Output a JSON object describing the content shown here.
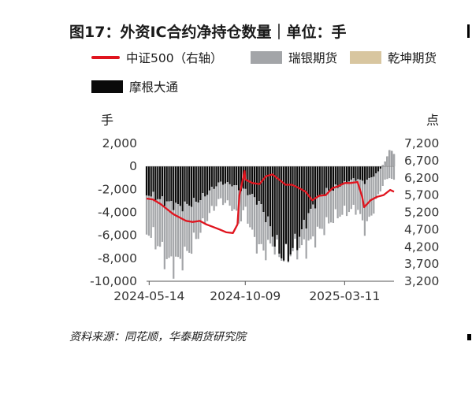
{
  "title": "图17：外资IC合约净持仓数量｜单位：手",
  "legend": [
    {
      "label": "中证500（右轴）",
      "color": "#e0141e",
      "kind": "line"
    },
    {
      "label": "瑞银期货",
      "color": "#a3a5a8",
      "kind": "bar"
    },
    {
      "label": "乾坤期货",
      "color": "#d8c6a0",
      "kind": "bar"
    },
    {
      "label": "摩根大通",
      "color": "#0a0a0a",
      "kind": "bar"
    }
  ],
  "left_unit": "手",
  "right_unit": "点",
  "source": "资料来源：同花顺，华泰期货研究院",
  "chart_data": {
    "type": "bar",
    "title": "图17：外资IC合约净持仓数量｜单位：手",
    "left_axis": {
      "unit": "手",
      "ticks": [
        "2,000",
        "0",
        "-2,000",
        "-4,000",
        "-6,000",
        "-8,000",
        "-10,000"
      ],
      "ylim": [
        -10000,
        2000
      ]
    },
    "right_axis": {
      "unit": "点",
      "ticks": [
        "7,200",
        "6,700",
        "6,200",
        "5,700",
        "5,200",
        "4,700",
        "4,200",
        "3,700",
        "3,200"
      ],
      "ylim": [
        3200,
        7200
      ]
    },
    "x_ticks": [
      "2024-05-14",
      "2024-10-09",
      "2025-03-11"
    ],
    "x_range": [
      "2024-05-10",
      "2025-05-26"
    ],
    "grid": false,
    "legend_position": "top",
    "series": [
      {
        "name": "摩根大通",
        "type": "bar",
        "stacked": true,
        "points": [
          [
            "2024-05-10",
            -2400
          ],
          [
            "2024-05-20",
            -2600
          ],
          [
            "2024-05-31",
            -2900
          ],
          [
            "2024-06-10",
            -3100
          ],
          [
            "2024-06-20",
            -3300
          ],
          [
            "2024-06-30",
            -3500
          ],
          [
            "2024-07-10",
            -3400
          ],
          [
            "2024-07-20",
            -3200
          ],
          [
            "2024-07-31",
            -2900
          ],
          [
            "2024-08-10",
            -2400
          ],
          [
            "2024-08-20",
            -1900
          ],
          [
            "2024-08-31",
            -1400
          ],
          [
            "2024-09-10",
            -1500
          ],
          [
            "2024-09-20",
            -1600
          ],
          [
            "2024-09-30",
            -2000
          ],
          [
            "2024-10-09",
            -2100
          ],
          [
            "2024-10-20",
            -2600
          ],
          [
            "2024-10-31",
            -3200
          ],
          [
            "2024-11-10",
            -4400
          ],
          [
            "2024-11-20",
            -5900
          ],
          [
            "2024-11-30",
            -7400
          ],
          [
            "2024-12-10",
            -8000
          ],
          [
            "2024-12-20",
            -7200
          ],
          [
            "2024-12-31",
            -6200
          ],
          [
            "2025-01-10",
            -4800
          ],
          [
            "2025-01-20",
            -3600
          ],
          [
            "2025-01-31",
            -2600
          ],
          [
            "2025-02-10",
            -2200
          ],
          [
            "2025-02-20",
            -2000
          ],
          [
            "2025-02-28",
            -1800
          ],
          [
            "2025-03-11",
            -1500
          ],
          [
            "2025-03-20",
            -1200
          ],
          [
            "2025-03-31",
            -1100
          ],
          [
            "2025-04-10",
            -1400
          ],
          [
            "2025-04-20",
            -1000
          ],
          [
            "2025-04-30",
            -600
          ],
          [
            "2025-05-10",
            200
          ],
          [
            "2025-05-20",
            1400
          ],
          [
            "2025-05-26",
            1200
          ]
        ]
      },
      {
        "name": "瑞银期货",
        "type": "bar",
        "stacked": true,
        "points": [
          [
            "2024-05-10",
            -3200
          ],
          [
            "2024-05-20",
            -3600
          ],
          [
            "2024-05-31",
            -4200
          ],
          [
            "2024-06-10",
            -5100
          ],
          [
            "2024-06-20",
            -5200
          ],
          [
            "2024-06-30",
            -4700
          ],
          [
            "2024-07-10",
            -4300
          ],
          [
            "2024-07-20",
            -3600
          ],
          [
            "2024-07-31",
            -2800
          ],
          [
            "2024-08-10",
            -2200
          ],
          [
            "2024-08-20",
            -1800
          ],
          [
            "2024-08-31",
            -1500
          ],
          [
            "2024-09-10",
            -1700
          ],
          [
            "2024-09-20",
            -2000
          ],
          [
            "2024-09-30",
            -2800
          ],
          [
            "2024-10-09",
            -1600
          ],
          [
            "2024-10-20",
            -3400
          ],
          [
            "2024-10-31",
            -4000
          ],
          [
            "2024-11-10",
            -2900
          ],
          [
            "2024-11-20",
            -800
          ],
          [
            "2024-11-30",
            -300
          ],
          [
            "2024-12-10",
            0
          ],
          [
            "2024-12-20",
            -200
          ],
          [
            "2024-12-31",
            -900
          ],
          [
            "2025-01-10",
            -2200
          ],
          [
            "2025-01-20",
            -2900
          ],
          [
            "2025-01-31",
            -3000
          ],
          [
            "2025-02-10",
            -3000
          ],
          [
            "2025-02-20",
            -2600
          ],
          [
            "2025-02-28",
            -2500
          ],
          [
            "2025-03-11",
            -2500
          ],
          [
            "2025-03-20",
            -2600
          ],
          [
            "2025-03-31",
            -2600
          ],
          [
            "2025-04-10",
            -4000
          ],
          [
            "2025-04-20",
            -3500
          ],
          [
            "2025-04-30",
            -2200
          ],
          [
            "2025-05-10",
            -1600
          ],
          [
            "2025-05-20",
            -2300
          ],
          [
            "2025-05-26",
            -2500
          ]
        ]
      },
      {
        "name": "乾坤期货",
        "type": "bar",
        "stacked": true,
        "points": []
      },
      {
        "name": "中证500（右轴）",
        "type": "line",
        "axis": "right",
        "points": [
          [
            "2024-05-10",
            5600
          ],
          [
            "2024-05-20",
            5570
          ],
          [
            "2024-05-31",
            5450
          ],
          [
            "2024-06-10",
            5300
          ],
          [
            "2024-06-20",
            5150
          ],
          [
            "2024-06-30",
            5050
          ],
          [
            "2024-07-10",
            4950
          ],
          [
            "2024-07-20",
            4920
          ],
          [
            "2024-07-31",
            4950
          ],
          [
            "2024-08-10",
            4850
          ],
          [
            "2024-08-20",
            4780
          ],
          [
            "2024-08-31",
            4700
          ],
          [
            "2024-09-10",
            4620
          ],
          [
            "2024-09-20",
            4600
          ],
          [
            "2024-09-27",
            4850
          ],
          [
            "2024-09-30",
            5700
          ],
          [
            "2024-10-08",
            6400
          ],
          [
            "2024-10-09",
            6150
          ],
          [
            "2024-10-20",
            6050
          ],
          [
            "2024-10-31",
            6020
          ],
          [
            "2024-11-10",
            6250
          ],
          [
            "2024-11-20",
            6300
          ],
          [
            "2024-11-30",
            6150
          ],
          [
            "2024-12-10",
            6000
          ],
          [
            "2024-12-20",
            6000
          ],
          [
            "2024-12-31",
            5900
          ],
          [
            "2025-01-10",
            5800
          ],
          [
            "2025-01-20",
            5550
          ],
          [
            "2025-01-31",
            5680
          ],
          [
            "2025-02-10",
            5700
          ],
          [
            "2025-02-20",
            5900
          ],
          [
            "2025-02-28",
            5950
          ],
          [
            "2025-03-11",
            6050
          ],
          [
            "2025-03-20",
            6050
          ],
          [
            "2025-03-31",
            6080
          ],
          [
            "2025-04-07",
            5650
          ],
          [
            "2025-04-10",
            5350
          ],
          [
            "2025-04-20",
            5550
          ],
          [
            "2025-04-30",
            5650
          ],
          [
            "2025-05-10",
            5700
          ],
          [
            "2025-05-20",
            5850
          ],
          [
            "2025-05-26",
            5800
          ]
        ]
      }
    ]
  }
}
